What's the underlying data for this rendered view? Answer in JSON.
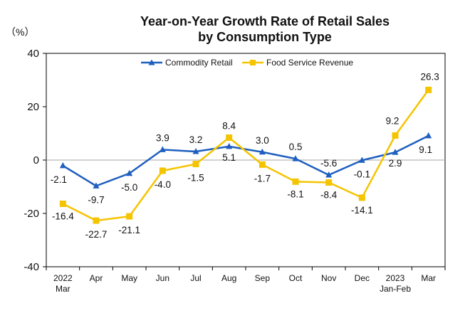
{
  "chart_data": {
    "type": "line",
    "title_line1": "Year-on-Year Growth Rate of Retail Sales",
    "title_line2": "by Consumption Type",
    "unit_label": "（%）",
    "ylim": [
      -40,
      40
    ],
    "yticks": [
      "40",
      "20",
      "0",
      "-20",
      "-40"
    ],
    "ytick_values": [
      40,
      20,
      0,
      -20,
      -40
    ],
    "grid": false,
    "legend_position": "top",
    "categories": [
      {
        "line1": "2022",
        "line2": "Mar"
      },
      {
        "line1": "Apr",
        "line2": ""
      },
      {
        "line1": "May",
        "line2": ""
      },
      {
        "line1": "Jun",
        "line2": ""
      },
      {
        "line1": "Jul",
        "line2": ""
      },
      {
        "line1": "Aug",
        "line2": ""
      },
      {
        "line1": "Sep",
        "line2": ""
      },
      {
        "line1": "Oct",
        "line2": ""
      },
      {
        "line1": "Nov",
        "line2": ""
      },
      {
        "line1": "Dec",
        "line2": ""
      },
      {
        "line1": "2023",
        "line2": "Jan-Feb"
      },
      {
        "line1": "Mar",
        "line2": ""
      }
    ],
    "series": [
      {
        "name": "Commodity Retail",
        "color": "#1f5fbf",
        "marker": "triangle",
        "values": [
          -2.1,
          -9.7,
          -5.0,
          3.9,
          3.2,
          5.1,
          3.0,
          0.5,
          -5.6,
          -0.1,
          2.9,
          9.1
        ],
        "labels": [
          "-2.1",
          "-9.7",
          "-5.0",
          "3.9",
          "3.2",
          "5.1",
          "3.0",
          "0.5",
          "-5.6",
          "-0.1",
          "2.9",
          "9.1"
        ]
      },
      {
        "name": "Food Service Revenue",
        "color": "#f5c400",
        "marker": "square",
        "values": [
          -16.4,
          -22.7,
          -21.1,
          -4.0,
          -1.5,
          8.4,
          -1.7,
          -8.1,
          -8.4,
          -14.1,
          9.2,
          26.3
        ],
        "labels": [
          "-16.4",
          "-22.7",
          "-21.1",
          "-4.0",
          "-1.5",
          "8.4",
          "-1.7",
          "-8.1",
          "-8.4",
          "-14.1",
          "9.2",
          "26.3"
        ]
      }
    ]
  }
}
